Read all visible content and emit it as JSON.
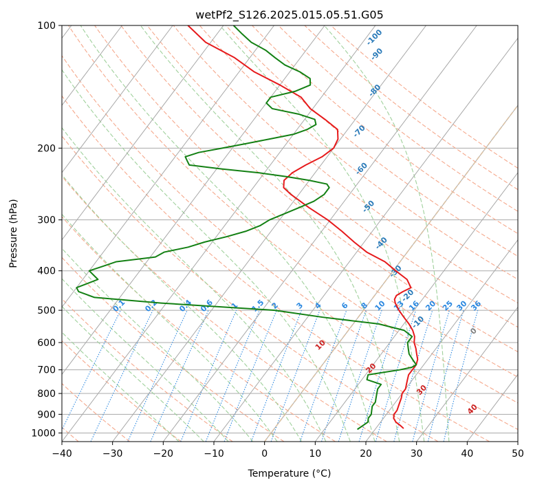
{
  "chart_data": {
    "type": "line",
    "title": "wetPf2_S126.2025.015.05.51.G05",
    "xlabel": "Temperature (°C)",
    "ylabel": "Pressure (hPa)",
    "xlim": [
      -40,
      50
    ],
    "ylim": [
      1050,
      100
    ],
    "yscale": "log",
    "grid": true,
    "xticks": [
      -40,
      -30,
      -20,
      -10,
      0,
      10,
      20,
      30,
      40,
      50
    ],
    "xtick_labels": [
      "−40",
      "−30",
      "−20",
      "−10",
      "0",
      "10",
      "20",
      "30",
      "40",
      "50"
    ],
    "yticks": [
      100,
      200,
      300,
      400,
      500,
      600,
      700,
      800,
      900,
      1000
    ],
    "yticks_labels": [
      "100",
      "200",
      "300",
      "400",
      "500",
      "600",
      "700",
      "800",
      "900",
      "1000"
    ],
    "skew_deg_per_decade": 60.6,
    "colors": {
      "temperature": "#e6191b",
      "dewpoint": "#138013",
      "isotherm": "#a8a8a8",
      "dry_adiabat": "#f5a88c",
      "moist_adiabat": "#9fd09b",
      "mixing_ratio": "#2b88e0",
      "lcl_label": "#808080",
      "adiabat_label": "#cc2222",
      "moist_label": "#2b7bb9",
      "freezing": "#d9c0a3"
    },
    "series": [
      {
        "name": "temperature",
        "p": [
          975,
          960,
          940,
          920,
          900,
          880,
          850,
          820,
          800,
          780,
          760,
          740,
          720,
          700,
          680,
          660,
          640,
          620,
          600,
          580,
          560,
          540,
          520,
          500,
          480,
          470,
          460,
          450,
          440,
          420,
          400,
          380,
          360,
          340,
          320,
          300,
          280,
          260,
          250,
          240,
          230,
          220,
          210,
          200,
          190,
          180,
          170,
          160,
          150,
          140,
          130,
          120,
          110,
          100
        ],
        "t": [
          25.5,
          24.5,
          23,
          22,
          21.5,
          21.5,
          21,
          20.5,
          20,
          20,
          19.5,
          19,
          18.5,
          18.5,
          18.5,
          18,
          17,
          16,
          14.8,
          14,
          12.7,
          11,
          9,
          7,
          5.2,
          4.5,
          4.3,
          5,
          6,
          4,
          0.5,
          -3,
          -8,
          -12,
          -16,
          -20.5,
          -26,
          -31.5,
          -34,
          -35,
          -34.5,
          -33,
          -31,
          -30,
          -30.5,
          -32,
          -36,
          -40.5,
          -44,
          -50,
          -57,
          -63,
          -71,
          -77
        ]
      },
      {
        "name": "dewpoint",
        "p": [
          980,
          960,
          940,
          920,
          900,
          880,
          860,
          840,
          820,
          800,
          780,
          760,
          740,
          720,
          700,
          690,
          680,
          660,
          640,
          620,
          600,
          580,
          560,
          540,
          520,
          500,
          480,
          465,
          450,
          440,
          420,
          400,
          390,
          380,
          370,
          360,
          350,
          340,
          330,
          320,
          310,
          300,
          290,
          280,
          270,
          260,
          250,
          245,
          240,
          235,
          230,
          225,
          220,
          215,
          210,
          205,
          200,
          195,
          190,
          185,
          180,
          175,
          170,
          165,
          160,
          155,
          150,
          145,
          140,
          135,
          130,
          125,
          120,
          115,
          110,
          105,
          100
        ],
        "td": [
          16.5,
          17,
          17.5,
          17,
          17,
          16.5,
          16,
          16,
          15.5,
          15,
          14.5,
          14.5,
          11,
          10.5,
          16,
          18,
          18.5,
          17,
          15.5,
          14.5,
          13.5,
          13.5,
          11,
          5,
          -7,
          -17.5,
          -41,
          -55,
          -59,
          -60,
          -57,
          -60,
          -58,
          -56,
          -49,
          -48,
          -44,
          -41.5,
          -38,
          -35,
          -33,
          -32,
          -30,
          -28,
          -26,
          -25,
          -25,
          -26,
          -30,
          -35,
          -41,
          -49,
          -56,
          -57,
          -58,
          -56,
          -52,
          -48,
          -44,
          -40,
          -38,
          -37,
          -38,
          -42,
          -48,
          -50,
          -50,
          -46,
          -44,
          -45,
          -48,
          -52,
          -55,
          -58,
          -62,
          -65,
          -68
        ]
      }
    ],
    "isotherms": [
      -120,
      -110,
      -100,
      -90,
      -80,
      -70,
      -60,
      -50,
      -40,
      -30,
      -20,
      -10,
      0,
      10,
      20,
      30,
      40,
      50
    ],
    "dry_adiabats_c": [
      -50,
      -40,
      -30,
      -20,
      -10,
      0,
      10,
      20,
      30,
      40,
      50,
      60,
      70,
      80,
      90,
      100,
      110,
      120,
      130,
      140,
      150,
      160
    ],
    "moist_adiabats_c": [
      -20,
      -15,
      -10,
      -5,
      0,
      5,
      10,
      15,
      20,
      25,
      30,
      35
    ],
    "mixing_ratio_lines": [
      "0.1",
      "0.2",
      "0.4",
      "0.6",
      "1",
      "1.5",
      "2",
      "3",
      "4",
      "6",
      "8",
      "10",
      "13",
      "16",
      "20",
      "25",
      "30",
      "36"
    ],
    "adiabat_labels": [
      "10",
      "20",
      "30",
      "40"
    ],
    "moist_labels": [
      "-100",
      "-90",
      "-80",
      "-70",
      "-60",
      "-50",
      "-40",
      "-30",
      "-20",
      "-10"
    ],
    "lcl_label": "0"
  }
}
